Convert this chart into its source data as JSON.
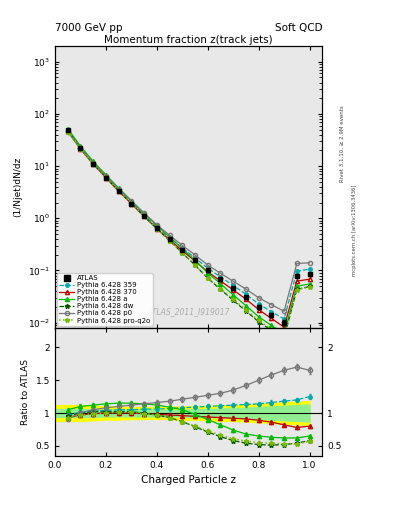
{
  "title_top_left": "7000 GeV pp",
  "title_top_right": "Soft QCD",
  "main_title": "Momentum fraction z(track jets)",
  "ylabel_main": "(1/Njet)dN/dz",
  "ylabel_ratio": "Ratio to ATLAS",
  "xlabel": "Charged Particle z",
  "watermark": "ATLAS_2011_I919017",
  "right_label": "mcplots.cern.ch [arXiv:1306.3436]",
  "right_label2": "Rivet 3.1.10, ≥ 2.9M events",
  "xlim": [
    0.0,
    1.05
  ],
  "ylim_main": [
    0.008,
    2000
  ],
  "ylim_ratio": [
    0.35,
    2.3
  ],
  "z_values": [
    0.05,
    0.1,
    0.15,
    0.2,
    0.25,
    0.3,
    0.35,
    0.4,
    0.45,
    0.5,
    0.55,
    0.6,
    0.65,
    0.7,
    0.75,
    0.8,
    0.85,
    0.9,
    0.95,
    1.0
  ],
  "atlas_y": [
    50,
    22,
    11,
    6.0,
    3.3,
    1.9,
    1.1,
    0.65,
    0.4,
    0.25,
    0.16,
    0.1,
    0.068,
    0.046,
    0.031,
    0.02,
    0.014,
    0.01,
    0.08,
    0.085
  ],
  "atlas_yerr": [
    2.0,
    0.9,
    0.5,
    0.25,
    0.15,
    0.09,
    0.055,
    0.032,
    0.02,
    0.013,
    0.009,
    0.006,
    0.004,
    0.003,
    0.002,
    0.002,
    0.001,
    0.001,
    0.006,
    0.006
  ],
  "atlas_band_yellow": [
    0.12,
    0.12,
    0.11,
    0.1,
    0.1,
    0.09,
    0.09,
    0.09,
    0.09,
    0.1,
    0.1,
    0.11,
    0.12,
    0.12,
    0.13,
    0.14,
    0.15,
    0.16,
    0.17,
    0.18
  ],
  "atlas_band_green": [
    0.06,
    0.06,
    0.06,
    0.05,
    0.05,
    0.05,
    0.05,
    0.05,
    0.05,
    0.05,
    0.06,
    0.06,
    0.07,
    0.07,
    0.08,
    0.09,
    0.1,
    0.11,
    0.12,
    0.13
  ],
  "py359_ratio": [
    0.97,
    1.01,
    1.03,
    1.04,
    1.05,
    1.05,
    1.06,
    1.06,
    1.07,
    1.08,
    1.09,
    1.1,
    1.11,
    1.12,
    1.13,
    1.14,
    1.16,
    1.18,
    1.2,
    1.25
  ],
  "py370_ratio": [
    0.93,
    0.97,
    0.99,
    1.0,
    1.0,
    1.0,
    0.99,
    0.98,
    0.97,
    0.96,
    0.95,
    0.94,
    0.93,
    0.92,
    0.91,
    0.89,
    0.86,
    0.82,
    0.78,
    0.8
  ],
  "pya_ratio": [
    1.05,
    1.1,
    1.12,
    1.14,
    1.15,
    1.15,
    1.14,
    1.12,
    1.09,
    1.05,
    0.98,
    0.9,
    0.82,
    0.74,
    0.68,
    0.65,
    0.63,
    0.62,
    0.62,
    0.65
  ],
  "pydw_ratio": [
    0.95,
    1.0,
    1.02,
    1.02,
    1.02,
    1.02,
    1.0,
    0.97,
    0.93,
    0.87,
    0.79,
    0.71,
    0.64,
    0.58,
    0.54,
    0.52,
    0.51,
    0.52,
    0.54,
    0.58
  ],
  "pyp0_ratio": [
    0.91,
    1.0,
    1.05,
    1.08,
    1.1,
    1.12,
    1.14,
    1.16,
    1.18,
    1.21,
    1.24,
    1.27,
    1.3,
    1.35,
    1.42,
    1.5,
    1.58,
    1.65,
    1.7,
    1.65
  ],
  "pyproq2o_ratio": [
    0.92,
    0.97,
    0.99,
    1.0,
    1.01,
    1.01,
    0.99,
    0.97,
    0.93,
    0.87,
    0.8,
    0.73,
    0.66,
    0.61,
    0.57,
    0.55,
    0.54,
    0.53,
    0.53,
    0.57
  ],
  "color_atlas": "#000000",
  "color_359": "#00AAAA",
  "color_370": "#BB0000",
  "color_a": "#00BB00",
  "color_dw": "#005500",
  "color_p0": "#777777",
  "color_proq2o": "#77BB00",
  "color_band_yellow": "#FFFF00",
  "color_band_green": "#90EE90",
  "bg_color": "#e8e8e8"
}
